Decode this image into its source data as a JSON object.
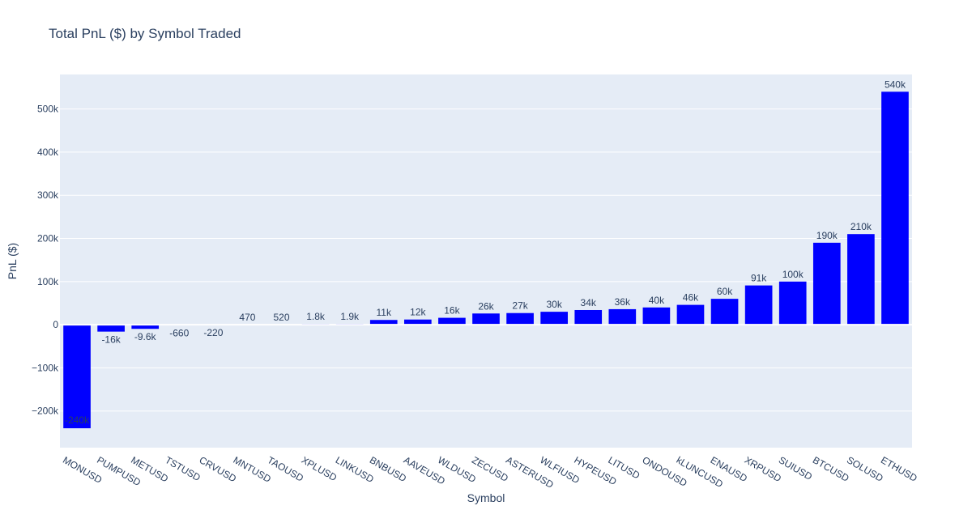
{
  "chart_data": {
    "type": "bar",
    "title": "Total PnL ($) by Symbol Traded",
    "xlabel": "Symbol",
    "ylabel": "PnL ($)",
    "ylim": [
      -285000,
      580000
    ],
    "y_ticks": [
      -200000,
      -100000,
      0,
      100000,
      200000,
      300000,
      400000,
      500000
    ],
    "y_tick_labels": [
      "−200k",
      "−100k",
      "0",
      "100k",
      "200k",
      "300k",
      "400k",
      "500k"
    ],
    "grid": true,
    "bar_color": "#0000ff",
    "plot_bgcolor": "#e5ecf6",
    "categories": [
      "MONUSD",
      "PUMPUSD",
      "METUSD",
      "TSTUSD",
      "CRVUSD",
      "MNTUSD",
      "TAOUSD",
      "XPLUSD",
      "LINKUSD",
      "BNBUSD",
      "AAVEUSD",
      "WLDUSD",
      "ZECUSD",
      "ASTERUSD",
      "WLFIUSD",
      "HYPEUSD",
      "LITUSD",
      "ONDOUSD",
      "kLUNCUSD",
      "ENAUSD",
      "XRPUSD",
      "SUIUSD",
      "BTCUSD",
      "SOLUSD",
      "ETHUSD"
    ],
    "values": [
      -240000,
      -16000,
      -9600,
      -660,
      -220,
      470,
      520,
      1800,
      1900,
      11000,
      12000,
      16000,
      26000,
      27000,
      30000,
      34000,
      36000,
      40000,
      46000,
      60000,
      91000,
      100000,
      190000,
      210000,
      540000
    ],
    "data_labels": [
      "-240k",
      "-16k",
      "-9.6k",
      "-660",
      "-220",
      "470",
      "520",
      "1.8k",
      "1.9k",
      "11k",
      "12k",
      "16k",
      "26k",
      "27k",
      "30k",
      "34k",
      "36k",
      "40k",
      "46k",
      "60k",
      "91k",
      "100k",
      "190k",
      "210k",
      "540k"
    ]
  }
}
